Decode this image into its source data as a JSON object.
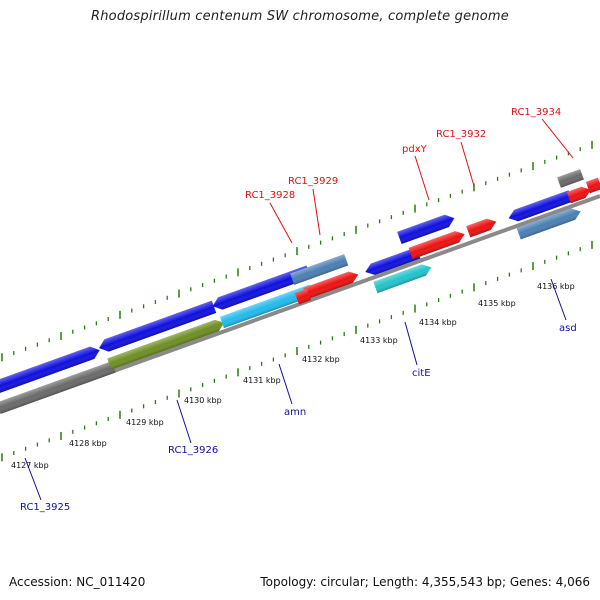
{
  "title": "Rhodospirillum centenum SW chromosome, complete genome",
  "footer": {
    "accession": "Accession: NC_011420",
    "topology": "Topology: circular; Length: 4,355,543 bp; Genes: 4,066"
  },
  "colors": {
    "backbone": "#8a8a8a",
    "tick": "#2a7a10",
    "cds": "#1010e0",
    "gene_red": "#ee1111",
    "steel": "#4a7fb5",
    "cyan": "#22c4cc",
    "sky": "#22bbee",
    "olive": "#6e8e22",
    "gray": "#6a6a6a",
    "label_top": "#dd1111",
    "label_bottom": "#1010a0"
  },
  "kbp_labels": [
    "4127 kbp",
    "4128 kbp",
    "4129 kbp",
    "4130 kbp",
    "4131 kbp",
    "4132 kbp",
    "4133 kbp",
    "4134 kbp",
    "4135 kbp",
    "4136 kbp"
  ],
  "gene_labels_top": [
    "RC1_3928",
    "RC1_3929",
    "pdxY",
    "RC1_3932",
    "RC1_3934"
  ],
  "gene_labels_bottom": [
    "RC1_3925",
    "RC1_3926",
    "amn",
    "citE",
    "asd"
  ]
}
